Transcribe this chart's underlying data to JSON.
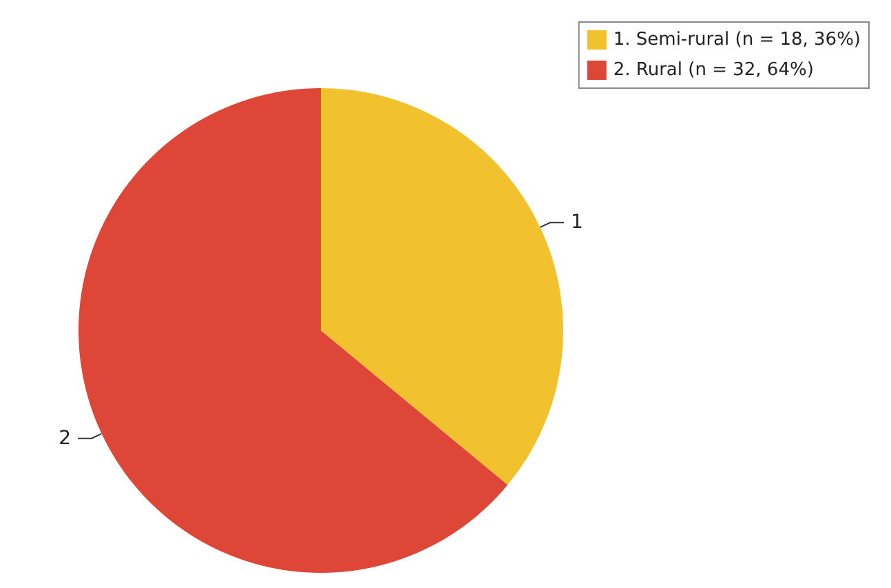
{
  "chart_data": {
    "type": "pie",
    "categories": [
      "1. Semi-rural (n = 18, 36%)",
      "2. Rural (n = 32, 64%)"
    ],
    "values": [
      18,
      32
    ],
    "annotations": [
      "1",
      "2"
    ],
    "colors": [
      "#f2c12e",
      "#de4637"
    ],
    "legend": "top right"
  }
}
